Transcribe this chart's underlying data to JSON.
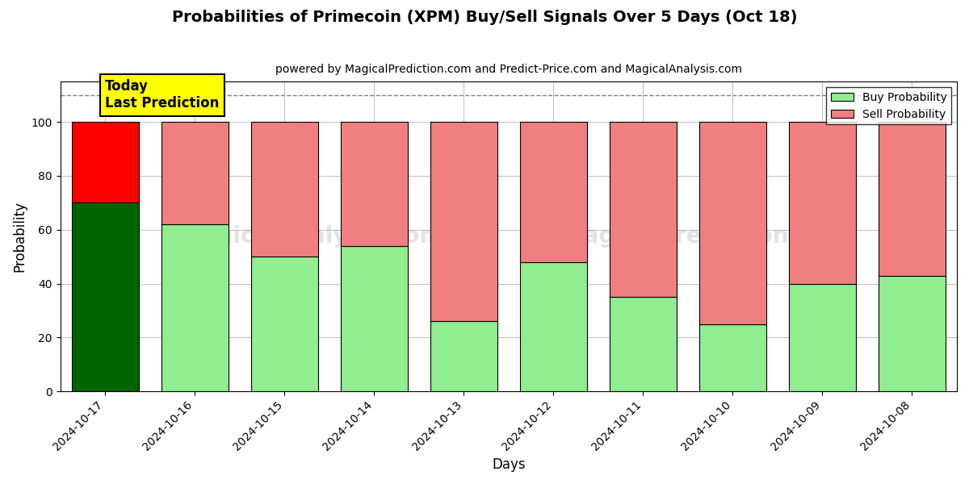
{
  "title": "Probabilities of Primecoin (XPM) Buy/Sell Signals Over 5 Days (Oct 18)",
  "subtitle": "powered by MagicalPrediction.com and Predict-Price.com and MagicalAnalysis.com",
  "xlabel": "Days",
  "ylabel": "Probability",
  "categories": [
    "2024-10-17",
    "2024-10-16",
    "2024-10-15",
    "2024-10-14",
    "2024-10-13",
    "2024-10-12",
    "2024-10-11",
    "2024-10-10",
    "2024-10-09",
    "2024-10-08"
  ],
  "buy_values": [
    70,
    62,
    50,
    54,
    26,
    48,
    35,
    25,
    40,
    43
  ],
  "sell_values": [
    30,
    38,
    50,
    46,
    74,
    52,
    65,
    75,
    60,
    57
  ],
  "today_buy_color": "#006400",
  "today_sell_color": "#ff0000",
  "buy_color": "#90ee90",
  "sell_color": "#f08080",
  "today_label_bg": "#ffff00",
  "dashed_line_y": 110,
  "ylim": [
    0,
    115
  ],
  "bar_edge_color": "#000000",
  "legend_buy_label": "Buy Probability",
  "legend_sell_label": "Sell Probability",
  "bar_width": 0.75,
  "title_fontsize": 14,
  "subtitle_fontsize": 10,
  "tick_fontsize": 10,
  "label_fontsize": 12
}
